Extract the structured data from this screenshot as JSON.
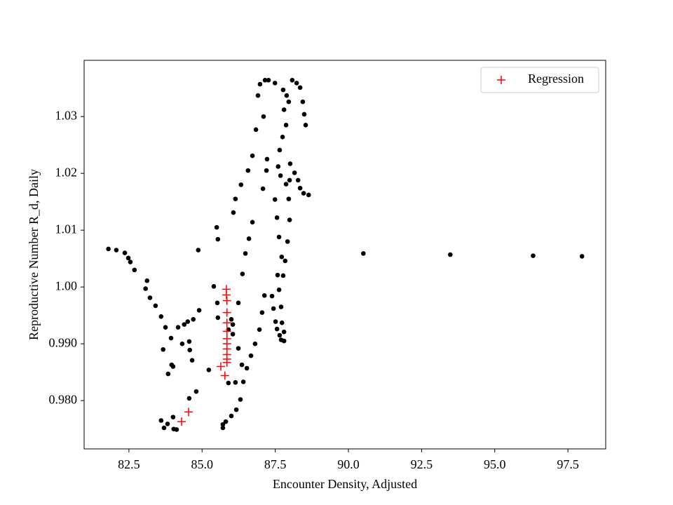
{
  "chart_data": {
    "type": "scatter",
    "xlabel": "Encounter Density, Adjusted",
    "ylabel": "Reproductive Number R_d, Daily",
    "xlim": [
      80.97,
      98.79
    ],
    "ylim": [
      0.9715,
      1.0399
    ],
    "xticks": [
      {
        "value": 82.5,
        "label": "82.5"
      },
      {
        "value": 85,
        "label": "85.0"
      },
      {
        "value": 87.5,
        "label": "87.5"
      },
      {
        "value": 90,
        "label": "90.0"
      },
      {
        "value": 92.5,
        "label": "92.5"
      },
      {
        "value": 95,
        "label": "95.0"
      },
      {
        "value": 97.5,
        "label": "97.5"
      }
    ],
    "yticks": [
      {
        "value": 0.98,
        "label": "0.980"
      },
      {
        "value": 0.99,
        "label": "0.990"
      },
      {
        "value": 1,
        "label": "1.00"
      },
      {
        "value": 1.01,
        "label": "1.01"
      },
      {
        "value": 1.02,
        "label": "1.02"
      },
      {
        "value": 1.03,
        "label": "1.03"
      }
    ],
    "legend": "upper right",
    "series": [
      {
        "color": "#000000",
        "marker": "dot",
        "x": [
          81.8,
          82.07,
          82.36,
          82.48,
          82.55,
          82.69,
          83.12,
          83.07,
          83.22,
          83.41,
          83.6,
          83.75,
          83.67,
          83.84,
          83.96,
          84.01,
          83.94,
          84.18,
          84.32,
          84.39,
          84.51,
          84.56,
          84.58,
          84.66,
          84.7,
          84.9,
          84.87,
          84.56,
          84.8,
          84.01,
          84.03,
          83.82,
          83.7,
          83.6,
          84.13,
          85.23,
          85.5,
          85.4,
          85.52,
          85.54,
          85.54,
          85.71,
          85.81,
          86.0,
          86.17,
          86.31,
          86.41,
          86.53,
          86.67,
          86.81,
          86.96,
          87.05,
          87.13,
          87.39,
          87.44,
          87.51,
          87.56,
          87.65,
          87.7,
          87.8,
          87.8,
          87.73,
          87.7,
          87.63,
          87.77,
          87.84,
          87.92,
          87.99,
          87.96,
          87.99,
          88.01,
          88.16,
          88.28,
          88.35,
          88.47,
          88.64,
          87.87,
          87.68,
          87.6,
          87.65,
          87.75,
          87.87,
          87.8,
          87.77,
          87.89,
          88.08,
          88.23,
          88.35,
          88.44,
          88.49,
          88.54,
          87.96,
          86.84,
          86.72,
          86.57,
          86.33,
          86.14,
          86.07,
          87.22,
          87.2,
          87.08,
          86.91,
          86.98,
          87.15,
          87.27,
          87.1,
          87.49,
          87.49,
          87.56,
          87.63,
          87.72,
          87.58,
          86.72,
          86.6,
          86.48,
          86.38,
          86.24,
          86.05,
          86.05,
          86.24,
          86.36,
          86.14,
          85.9,
          85.9,
          86.0,
          85.71,
          90.51,
          93.48,
          96.31,
          97.98
        ],
        "values": [
          1.0067,
          1.0065,
          1.006,
          1.0051,
          1.0044,
          1.003,
          1.0011,
          0.9997,
          0.9981,
          0.9967,
          0.9948,
          0.9929,
          0.989,
          0.9847,
          0.9863,
          0.986,
          0.991,
          0.9929,
          0.99,
          0.9934,
          0.9939,
          0.9904,
          0.9889,
          0.9871,
          0.9943,
          0.9959,
          1.0065,
          0.9804,
          0.9816,
          0.9771,
          0.975,
          0.9759,
          0.9752,
          0.9765,
          0.9749,
          0.9854,
          1.0105,
          1.0001,
          0.9972,
          1.0084,
          0.9946,
          0.9758,
          0.9763,
          0.9773,
          0.9784,
          0.9802,
          0.9833,
          0.9857,
          0.9879,
          0.99,
          0.9925,
          0.9955,
          0.9985,
          0.9984,
          0.9962,
          0.9939,
          0.9926,
          0.9915,
          0.9907,
          0.9905,
          0.9921,
          0.9937,
          0.9965,
          0.9995,
          1.002,
          1.0046,
          1.008,
          1.0118,
          1.0155,
          1.0188,
          1.0217,
          1.0201,
          1.0188,
          1.0174,
          1.0165,
          1.0162,
          1.0181,
          1.0196,
          1.0212,
          1.0241,
          1.0264,
          1.0285,
          1.0312,
          1.0347,
          1.0337,
          1.0364,
          1.0359,
          1.0351,
          1.0326,
          1.0304,
          1.0285,
          1.0326,
          1.0277,
          1.0231,
          1.0205,
          1.018,
          1.0155,
          1.0131,
          1.0225,
          1.0205,
          1.0173,
          1.0337,
          1.0357,
          1.0364,
          1.0364,
          1.03,
          1.0359,
          1.0154,
          1.0122,
          1.0088,
          1.0053,
          1.0021,
          1.0114,
          1.0085,
          1.0059,
          1.0023,
          0.9972,
          0.9934,
          0.9917,
          0.9892,
          0.9863,
          0.9832,
          0.9831,
          0.9925,
          0.9943,
          0.9752,
          1.0059,
          1.0057,
          1.0055,
          1.0054
        ]
      },
      {
        "name": "Regression",
        "color": "#ff0000",
        "marker": "plus",
        "x": [
          84.3,
          84.54,
          85.64,
          85.78,
          85.83,
          85.83,
          85.85,
          85.85,
          85.85,
          85.85,
          85.85,
          85.85,
          85.85,
          85.85,
          85.85,
          85.85
        ],
        "values": [
          0.9763,
          0.978,
          0.986,
          0.9844,
          0.9996,
          0.9986,
          0.9976,
          0.9955,
          0.9937,
          0.9922,
          0.9909,
          0.99,
          0.9891,
          0.9881,
          0.9873,
          0.9867
        ]
      }
    ]
  }
}
